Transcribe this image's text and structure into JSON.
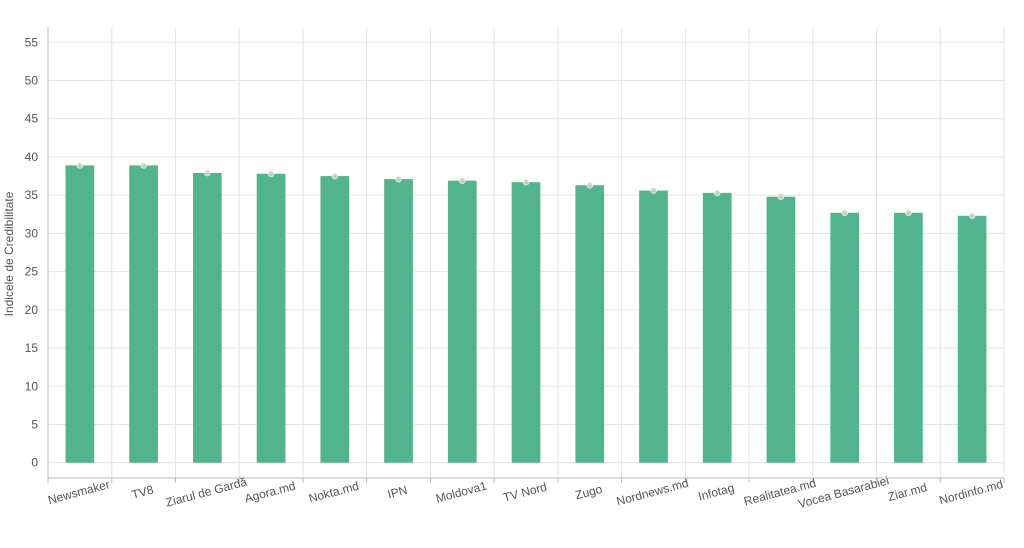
{
  "chart_data": {
    "type": "bar",
    "categories": [
      "Newsmaker",
      "TV8",
      "Ziarul de Gardă",
      "Agora.md",
      "Nokta.md",
      "IPN",
      "Moldova1",
      "TV Nord",
      "Zugo",
      "Nordnews.md",
      "Infotag",
      "Realitatea.md",
      "Vocea Basarabiei",
      "Ziar.md",
      "Nordinfo.md"
    ],
    "values": [
      38.9,
      38.9,
      37.9,
      37.8,
      37.5,
      37.1,
      36.9,
      36.7,
      36.3,
      35.6,
      35.3,
      34.8,
      32.7,
      32.7,
      32.3
    ],
    "ylabel": "Indicele de Credibilitate",
    "xlabel": "",
    "ylim": [
      -2,
      57
    ],
    "yticks": [
      0,
      5,
      10,
      15,
      20,
      25,
      30,
      35,
      40,
      45,
      50,
      55
    ],
    "grid": true,
    "legend": "none",
    "colors": {
      "bar": "#52b38f",
      "marker": "#cfcfcf"
    }
  }
}
